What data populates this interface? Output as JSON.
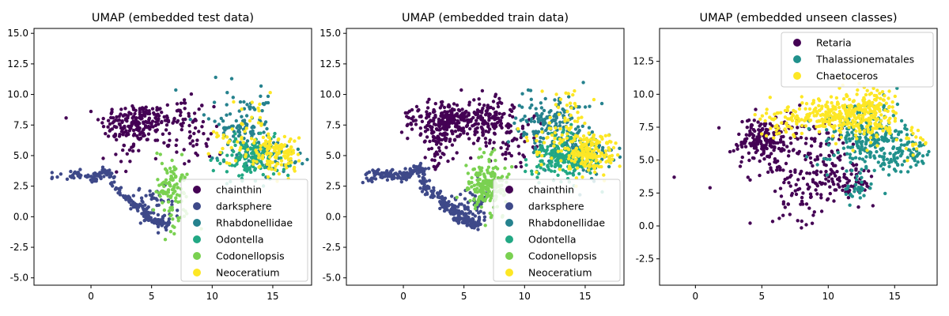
{
  "chart_data": [
    {
      "type": "scatter",
      "title": "UMAP (embedded test data)",
      "xlabel": "",
      "ylabel": "",
      "xlim": [
        -4.7,
        18.2
      ],
      "ylim": [
        -5.6,
        15.4
      ],
      "xticks": [
        0,
        5,
        10,
        15
      ],
      "yticks": [
        -5.0,
        -2.5,
        0.0,
        2.5,
        5.0,
        7.5,
        10.0,
        12.5,
        15.0
      ],
      "grid": false,
      "legend_position": "lower-right",
      "series": [
        {
          "name": "chainthin",
          "color": "#440154",
          "regions": [
            {
              "cx": 3.6,
              "cy": 7.7,
              "sx": 1.4,
              "sy": 0.8,
              "n": 170
            },
            {
              "cx": 7.2,
              "cy": 8.1,
              "sx": 1.2,
              "sy": 0.8,
              "n": 60
            },
            {
              "cx": 2.5,
              "cy": 5.6,
              "sx": 0.6,
              "sy": 1.0,
              "n": 25
            },
            {
              "cx": 8.5,
              "cy": 6.2,
              "sx": 1.2,
              "sy": 1.2,
              "n": 35
            }
          ]
        },
        {
          "name": "darksphere",
          "color": "#3e4989",
          "path": [
            [
              -3.2,
              3.2
            ],
            [
              -2.0,
              3.4
            ],
            [
              -1.0,
              3.5
            ],
            [
              0.2,
              3.0
            ],
            [
              0.8,
              3.6
            ],
            [
              1.5,
              3.8
            ],
            [
              1.8,
              2.4
            ],
            [
              3.0,
              1.6
            ],
            [
              3.6,
              0.9
            ],
            [
              4.2,
              0.6
            ],
            [
              4.6,
              0.0
            ],
            [
              5.2,
              -0.3
            ],
            [
              5.8,
              -0.6
            ],
            [
              6.3,
              -0.4
            ]
          ],
          "path_points": 210,
          "path_spread": 0.2,
          "regions": [
            {
              "cx": 5.5,
              "cy": 0.8,
              "sx": 0.8,
              "sy": 0.9,
              "n": 40
            }
          ]
        },
        {
          "name": "Rhabdonellidae",
          "color": "#26828e",
          "regions": [
            {
              "cx": 12.4,
              "cy": 7.5,
              "sx": 1.4,
              "sy": 1.3,
              "n": 110
            },
            {
              "cx": 15.0,
              "cy": 5.0,
              "sx": 1.3,
              "sy": 1.0,
              "n": 50
            }
          ]
        },
        {
          "name": "Odontella",
          "color": "#22a884",
          "regions": [
            {
              "cx": 13.3,
              "cy": 4.8,
              "sx": 1.3,
              "sy": 0.9,
              "n": 140
            }
          ]
        },
        {
          "name": "Codonellopsis",
          "color": "#7ad151",
          "regions": [
            {
              "cx": 6.7,
              "cy": 2.2,
              "sx": 0.7,
              "sy": 1.3,
              "n": 110
            }
          ]
        },
        {
          "name": "Neoceratium",
          "color": "#fde725",
          "regions": [
            {
              "cx": 15.3,
              "cy": 5.3,
              "sx": 0.9,
              "sy": 0.9,
              "n": 120
            },
            {
              "cx": 12.0,
              "cy": 6.0,
              "sx": 1.2,
              "sy": 1.0,
              "n": 30
            },
            {
              "cx": 13.8,
              "cy": 8.2,
              "sx": 1.0,
              "sy": 1.2,
              "n": 20
            }
          ]
        }
      ]
    },
    {
      "type": "scatter",
      "title": "UMAP (embedded train data)",
      "xlabel": "",
      "ylabel": "",
      "xlim": [
        -4.7,
        18.2
      ],
      "ylim": [
        -5.6,
        15.4
      ],
      "xticks": [
        0,
        5,
        10,
        15
      ],
      "yticks": [
        -5.0,
        -2.5,
        0.0,
        2.5,
        5.0,
        7.5,
        10.0,
        12.5,
        15.0
      ],
      "grid": false,
      "legend_position": "lower-right",
      "series": [
        {
          "name": "chainthin",
          "color": "#440154",
          "regions": [
            {
              "cx": 3.6,
              "cy": 7.8,
              "sx": 1.4,
              "sy": 0.8,
              "n": 260
            },
            {
              "cx": 7.2,
              "cy": 8.0,
              "sx": 1.2,
              "sy": 0.8,
              "n": 110
            },
            {
              "cx": 2.6,
              "cy": 5.6,
              "sx": 0.6,
              "sy": 1.0,
              "n": 40
            },
            {
              "cx": 9.0,
              "cy": 6.5,
              "sx": 1.3,
              "sy": 1.3,
              "n": 60
            }
          ]
        },
        {
          "name": "darksphere",
          "color": "#3e4989",
          "path": [
            [
              -3.2,
              3.2
            ],
            [
              -2.0,
              3.4
            ],
            [
              -1.0,
              3.5
            ],
            [
              0.2,
              3.2
            ],
            [
              0.8,
              3.8
            ],
            [
              1.5,
              4.0
            ],
            [
              1.8,
              2.4
            ],
            [
              3.0,
              1.6
            ],
            [
              3.6,
              0.9
            ],
            [
              4.2,
              0.5
            ],
            [
              4.6,
              0.0
            ],
            [
              5.2,
              -0.3
            ],
            [
              5.8,
              -0.6
            ],
            [
              6.4,
              -0.3
            ]
          ],
          "path_points": 340,
          "path_spread": 0.22,
          "regions": [
            {
              "cx": 5.4,
              "cy": 0.8,
              "sx": 0.9,
              "sy": 0.9,
              "n": 60
            }
          ]
        },
        {
          "name": "Rhabdonellidae",
          "color": "#26828e",
          "regions": [
            {
              "cx": 12.3,
              "cy": 7.6,
              "sx": 1.4,
              "sy": 1.3,
              "n": 170
            },
            {
              "cx": 15.0,
              "cy": 5.0,
              "sx": 1.3,
              "sy": 1.0,
              "n": 80
            }
          ]
        },
        {
          "name": "Odontella",
          "color": "#22a884",
          "regions": [
            {
              "cx": 13.3,
              "cy": 4.8,
              "sx": 1.3,
              "sy": 0.9,
              "n": 220
            }
          ]
        },
        {
          "name": "Codonellopsis",
          "color": "#7ad151",
          "regions": [
            {
              "cx": 6.9,
              "cy": 2.6,
              "sx": 0.8,
              "sy": 1.2,
              "n": 200
            }
          ]
        },
        {
          "name": "Neoceratium",
          "color": "#fde725",
          "regions": [
            {
              "cx": 15.3,
              "cy": 5.2,
              "sx": 0.9,
              "sy": 0.9,
              "n": 180
            },
            {
              "cx": 12.2,
              "cy": 6.3,
              "sx": 1.2,
              "sy": 1.0,
              "n": 40
            },
            {
              "cx": 13.6,
              "cy": 8.5,
              "sx": 1.0,
              "sy": 1.2,
              "n": 30
            }
          ]
        }
      ]
    },
    {
      "type": "scatter",
      "title": "UMAP (embedded unseen classes)",
      "xlabel": "",
      "ylabel": "",
      "xlim": [
        -2.7,
        18.2
      ],
      "ylim": [
        -4.5,
        15.0
      ],
      "xticks": [
        0,
        5,
        10,
        15
      ],
      "yticks": [
        -2.5,
        0.0,
        2.5,
        5.0,
        7.5,
        10.0,
        12.5
      ],
      "grid": false,
      "legend_position": "upper-right",
      "series": [
        {
          "name": "Retaria",
          "color": "#440154",
          "regions": [
            {
              "cx": 5.2,
              "cy": 6.5,
              "sx": 1.0,
              "sy": 0.9,
              "n": 200
            },
            {
              "cx": 9.0,
              "cy": 5.0,
              "sx": 1.6,
              "sy": 1.6,
              "n": 130
            },
            {
              "cx": 11.8,
              "cy": 3.2,
              "sx": 0.8,
              "sy": 0.7,
              "n": 60
            },
            {
              "cx": 8.0,
              "cy": 2.0,
              "sx": 1.2,
              "sy": 1.2,
              "n": 40
            }
          ],
          "extra_points": [
            [
              -1.6,
              3.7
            ],
            [
              1.1,
              2.9
            ],
            [
              6.6,
              0.8
            ],
            [
              7.7,
              0.4
            ],
            [
              8.8,
              0.2
            ]
          ]
        },
        {
          "name": "Thalassionematales",
          "color": "#21918c",
          "regions": [
            {
              "cx": 12.8,
              "cy": 6.8,
              "sx": 1.6,
              "sy": 1.2,
              "n": 230
            },
            {
              "cx": 15.6,
              "cy": 5.5,
              "sx": 0.9,
              "sy": 0.8,
              "n": 70
            },
            {
              "cx": 12.3,
              "cy": 2.9,
              "sx": 0.5,
              "sy": 0.5,
              "n": 25
            }
          ]
        },
        {
          "name": "Chaetoceros",
          "color": "#fde725",
          "regions": [
            {
              "cx": 10.2,
              "cy": 8.4,
              "sx": 1.6,
              "sy": 0.7,
              "n": 220
            },
            {
              "cx": 13.2,
              "cy": 8.6,
              "sx": 1.0,
              "sy": 1.1,
              "n": 160
            },
            {
              "cx": 6.5,
              "cy": 7.9,
              "sx": 0.8,
              "sy": 0.6,
              "n": 40
            },
            {
              "cx": 16.4,
              "cy": 6.3,
              "sx": 0.5,
              "sy": 0.5,
              "n": 20
            }
          ]
        }
      ]
    }
  ]
}
